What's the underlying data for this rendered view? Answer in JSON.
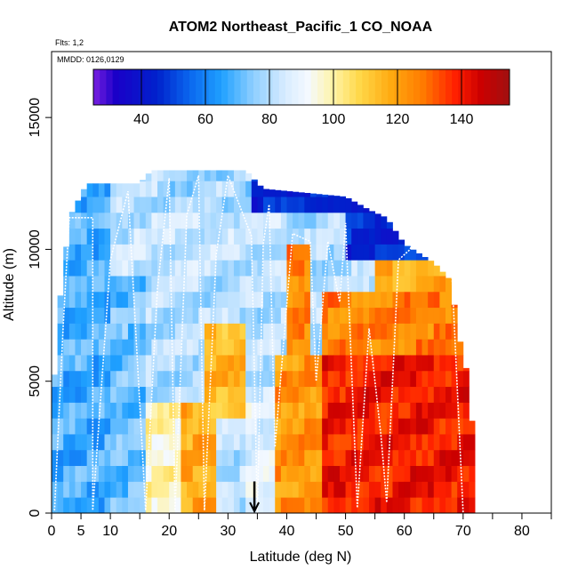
{
  "chart_data": {
    "type": "heatmap",
    "title": "ATOM2 Northeast_Pacific_1 CO_NOAA",
    "flights_label": "Flts: 1,2",
    "mmdd_label": "MMDD: 0126,0129",
    "xlabel": "Latitude (deg N)",
    "ylabel": "Altitude (m)",
    "xlim": [
      0,
      85
    ],
    "ylim": [
      0,
      17500
    ],
    "x_ticks": [
      0,
      5,
      10,
      20,
      30,
      40,
      50,
      60,
      70,
      80
    ],
    "x_minor_ticks": [
      15,
      25,
      35,
      45,
      55,
      65,
      75,
      85
    ],
    "y_ticks": [
      0,
      5000,
      10000,
      15000
    ],
    "colorbar": {
      "range": [
        25,
        155
      ],
      "ticks": [
        40,
        60,
        80,
        100,
        120,
        140
      ],
      "stops": [
        {
          "v": 25,
          "c": "#7a1fe0"
        },
        {
          "v": 32,
          "c": "#1a00c8"
        },
        {
          "v": 45,
          "c": "#0022cc"
        },
        {
          "v": 55,
          "c": "#0a66ee"
        },
        {
          "v": 65,
          "c": "#1fa0ff"
        },
        {
          "v": 75,
          "c": "#8fcfff"
        },
        {
          "v": 85,
          "c": "#d8ecff"
        },
        {
          "v": 92,
          "c": "#f4f9ff"
        },
        {
          "v": 100,
          "c": "#fff3a6"
        },
        {
          "v": 108,
          "c": "#ffd84a"
        },
        {
          "v": 118,
          "c": "#ffaa10"
        },
        {
          "v": 128,
          "c": "#ff7a00"
        },
        {
          "v": 138,
          "c": "#ff2000"
        },
        {
          "v": 146,
          "c": "#cc0000"
        },
        {
          "v": 155,
          "c": "#a01010"
        }
      ]
    },
    "field": {
      "lat_range": [
        0,
        72
      ],
      "lat_step": 1,
      "alt_step": 600,
      "alt_top_by_lat": [
        [
          0,
          3000
        ],
        [
          1,
          7500
        ],
        [
          2,
          9000
        ],
        [
          3,
          11200
        ],
        [
          6,
          12500
        ],
        [
          15,
          12500
        ],
        [
          17,
          13000
        ],
        [
          33,
          13000
        ],
        [
          36,
          12300
        ],
        [
          50,
          12000
        ],
        [
          54,
          11500
        ],
        [
          57,
          11200
        ],
        [
          60,
          10200
        ],
        [
          65,
          9500
        ],
        [
          68,
          8800
        ],
        [
          69,
          7000
        ],
        [
          70,
          6000
        ],
        [
          71,
          5000
        ],
        [
          72,
          2000
        ]
      ],
      "regions": [
        {
          "lat": [
            0,
            10
          ],
          "alt": [
            0,
            13000
          ],
          "value": 68
        },
        {
          "lat": [
            10,
            16
          ],
          "alt": [
            0,
            9000
          ],
          "value": 72
        },
        {
          "lat": [
            16,
            22
          ],
          "alt": [
            0,
            4000
          ],
          "value": 98
        },
        {
          "lat": [
            22,
            28
          ],
          "alt": [
            0,
            4000
          ],
          "value": 118
        },
        {
          "lat": [
            26,
            33
          ],
          "alt": [
            3500,
            7500
          ],
          "value": 115
        },
        {
          "lat": [
            33,
            38
          ],
          "alt": [
            0,
            5000
          ],
          "value": 88
        },
        {
          "lat": [
            38,
            46
          ],
          "alt": [
            0,
            6000
          ],
          "value": 122
        },
        {
          "lat": [
            40,
            44
          ],
          "alt": [
            6000,
            10500
          ],
          "value": 126
        },
        {
          "lat": [
            46,
            72
          ],
          "alt": [
            0,
            6000
          ],
          "value": 140
        },
        {
          "lat": [
            46,
            72
          ],
          "alt": [
            6000,
            8500
          ],
          "value": 126
        },
        {
          "lat": [
            55,
            70
          ],
          "alt": [
            8500,
            10000
          ],
          "value": 118
        },
        {
          "lat": [
            10,
            40
          ],
          "alt": [
            9000,
            11500
          ],
          "value": 82
        },
        {
          "lat": [
            30,
            70
          ],
          "alt": [
            11500,
            13000
          ],
          "value": 45
        },
        {
          "lat": [
            50,
            68
          ],
          "alt": [
            9500,
            11500
          ],
          "value": 46
        },
        {
          "lat": [
            18,
            34
          ],
          "alt": [
            11500,
            13000
          ],
          "value": 78
        }
      ]
    },
    "flight_track": [
      [
        0.5,
        100
      ],
      [
        2,
        7200
      ],
      [
        3,
        11200
      ],
      [
        7,
        11200
      ],
      [
        7,
        100
      ],
      [
        10,
        9600
      ],
      [
        13,
        12200
      ],
      [
        16,
        100
      ],
      [
        18,
        8500
      ],
      [
        20,
        12700
      ],
      [
        21,
        100
      ],
      [
        23,
        11300
      ],
      [
        25,
        12800
      ],
      [
        26,
        100
      ],
      [
        28,
        9800
      ],
      [
        30,
        12800
      ],
      [
        34,
        10500
      ],
      [
        35,
        0
      ],
      [
        36,
        10200
      ],
      [
        37,
        11700
      ],
      [
        38,
        2500
      ],
      [
        41,
        10600
      ],
      [
        44,
        10300
      ],
      [
        45,
        5000
      ],
      [
        47,
        10300
      ],
      [
        49,
        8000
      ],
      [
        50,
        11000
      ],
      [
        52,
        200
      ],
      [
        54,
        7000
      ],
      [
        56,
        3000
      ],
      [
        57,
        400
      ],
      [
        59,
        9600
      ],
      [
        61,
        10000
      ],
      [
        62,
        10800
      ],
      [
        64,
        11100
      ],
      [
        66,
        11200
      ],
      [
        68,
        9500
      ],
      [
        70,
        0
      ]
    ],
    "marker": {
      "lat": 34.5,
      "label": "arrow"
    }
  }
}
